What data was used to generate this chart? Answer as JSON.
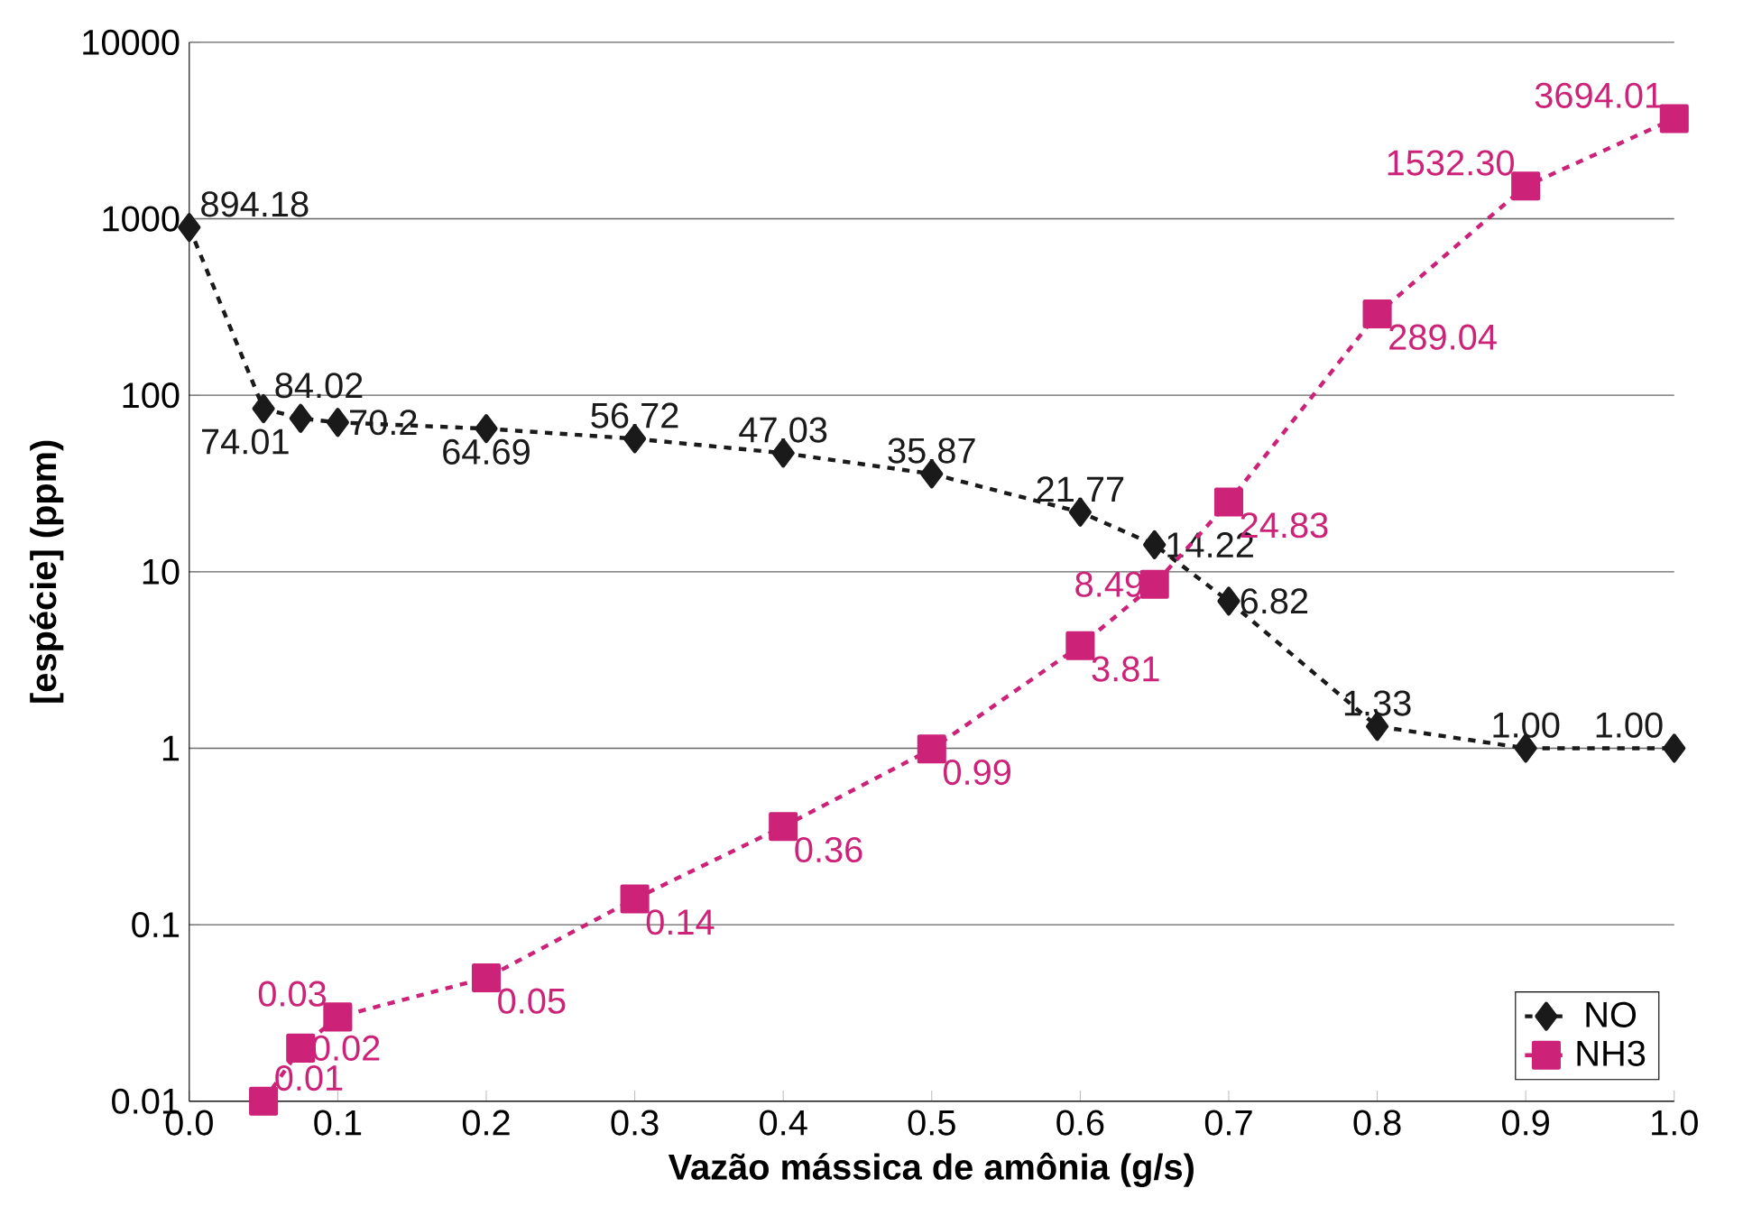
{
  "chart_data": {
    "type": "line",
    "xlabel": "Vazão mássica de amônia (g/s)",
    "ylabel": "[espécie] (ppm)",
    "log": "y",
    "xlim": [
      0,
      1
    ],
    "xticks": [
      {
        "value": 0,
        "label": "0.0"
      },
      0.1,
      0.2,
      0.3,
      0.4,
      0.5,
      0.6,
      0.7,
      0.8,
      0.9,
      {
        "value": 1,
        "label": "1.0"
      }
    ],
    "ylim": [
      0.01,
      10000
    ],
    "yticks": [
      0.01,
      0.1,
      1,
      10,
      100,
      1000,
      10000
    ],
    "grid": "y",
    "legend": "bottom right",
    "line_style": "dotted",
    "series": [
      {
        "name": "NO",
        "color": "#1a1a1a",
        "marker": "diamond",
        "x": [
          0,
          0.05,
          0.075,
          0.1,
          0.2,
          0.3,
          0.4,
          0.5,
          0.6,
          0.65,
          0.7,
          0.8,
          0.9,
          1.0
        ],
        "values": [
          894.18,
          84.02,
          74.01,
          70.2,
          64.69,
          56.72,
          47.03,
          35.87,
          21.77,
          14.22,
          6.82,
          1.33,
          1.0,
          1.0
        ],
        "value_labels": [
          "894.18",
          "84.02",
          "74.01",
          "70.2",
          "64.69",
          "56.72",
          "47.03",
          "35.87",
          "21.77",
          "14.22",
          "6.82",
          "1.33",
          "1.00",
          "1.00"
        ]
      },
      {
        "name": "NH3",
        "color": "#cc2277",
        "marker": "square",
        "x": [
          0.05,
          0.075,
          0.1,
          0.2,
          0.3,
          0.4,
          0.5,
          0.6,
          0.65,
          0.7,
          0.8,
          0.9,
          1.0
        ],
        "values": [
          0.01,
          0.02,
          0.03,
          0.05,
          0.14,
          0.36,
          0.99,
          3.81,
          8.49,
          24.83,
          289.04,
          1532.3,
          3694.01
        ],
        "value_labels": [
          "0.01",
          "0.02",
          "0.03",
          "0.05",
          "0.14",
          "0.36",
          "0.99",
          "3.81",
          "8.49",
          "24.83",
          "289.04",
          "1532.30",
          "3694.01"
        ]
      }
    ]
  }
}
